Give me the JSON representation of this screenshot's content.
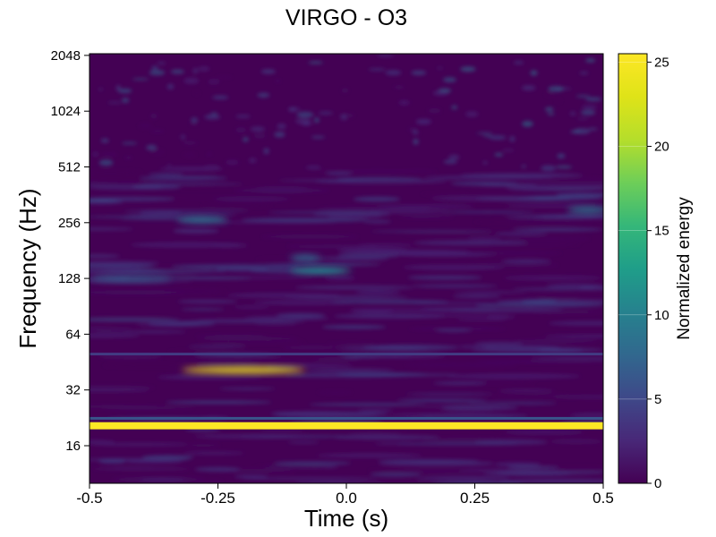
{
  "chart_data": {
    "type": "heatmap",
    "title": "VIRGO - O3",
    "xlabel": "Time (s)",
    "ylabel": "Frequency (Hz)",
    "xlim": [
      -0.5,
      0.5
    ],
    "ylim": [
      10,
      2048
    ],
    "yscale": "log2",
    "x_ticks": [
      {
        "value": -0.5,
        "label": "-0.5"
      },
      {
        "value": -0.25,
        "label": "-0.25"
      },
      {
        "value": 0.0,
        "label": "0.0"
      },
      {
        "value": 0.25,
        "label": "0.25"
      },
      {
        "value": 0.5,
        "label": "0.5"
      }
    ],
    "y_ticks": [
      {
        "value": 16,
        "label": "16"
      },
      {
        "value": 32,
        "label": "32"
      },
      {
        "value": 64,
        "label": "64"
      },
      {
        "value": 128,
        "label": "128"
      },
      {
        "value": 256,
        "label": "256"
      },
      {
        "value": 512,
        "label": "512"
      },
      {
        "value": 1024,
        "label": "1024"
      },
      {
        "value": 2048,
        "label": "2048"
      }
    ],
    "colorbar": {
      "label": "Normalized energy",
      "colormap": "viridis",
      "range": [
        0,
        25.5
      ],
      "ticks": [
        {
          "value": 0,
          "label": "0"
        },
        {
          "value": 5,
          "label": "5"
        },
        {
          "value": 10,
          "label": "10"
        },
        {
          "value": 15,
          "label": "15"
        },
        {
          "value": 20,
          "label": "20"
        },
        {
          "value": 25,
          "label": "25"
        }
      ]
    },
    "features": [
      {
        "kind": "line",
        "freq": 20.5,
        "t_start": -0.5,
        "t_end": 0.5,
        "energy": 25.5
      },
      {
        "kind": "line",
        "freq": 22.5,
        "t_start": -0.5,
        "t_end": 0.5,
        "energy": 6
      },
      {
        "kind": "line",
        "freq": 50,
        "t_start": -0.5,
        "t_end": 0.5,
        "energy": 4
      },
      {
        "kind": "blob",
        "freq": 41,
        "t_center": -0.2,
        "t_width": 0.12,
        "energy": 24
      },
      {
        "kind": "blob",
        "freq": 141,
        "t_center": -0.05,
        "t_width": 0.06,
        "energy": 11
      },
      {
        "kind": "blob",
        "freq": 165,
        "t_center": -0.08,
        "t_width": 0.03,
        "energy": 8
      },
      {
        "kind": "blob",
        "freq": 128,
        "t_center": -0.42,
        "t_width": 0.08,
        "energy": 7
      },
      {
        "kind": "blob",
        "freq": 265,
        "t_center": -0.28,
        "t_width": 0.05,
        "energy": 9
      },
      {
        "kind": "blob",
        "freq": 300,
        "t_center": 0.47,
        "t_width": 0.04,
        "energy": 9
      }
    ]
  }
}
